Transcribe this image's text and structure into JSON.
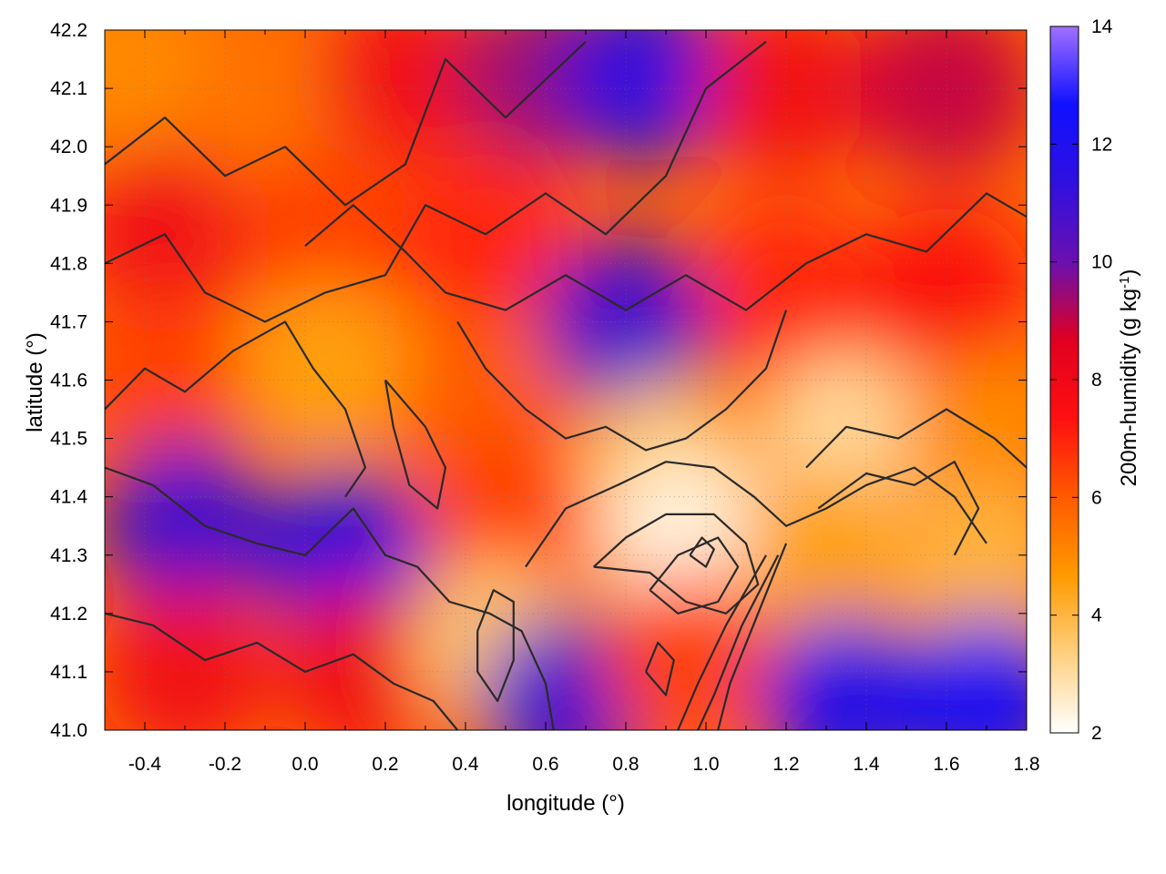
{
  "chart_data": {
    "type": "heatmap",
    "xlabel": "longitude (°)",
    "ylabel": "latitude (°)",
    "xlim": [
      -0.5,
      1.8
    ],
    "ylim": [
      41.0,
      42.2
    ],
    "x_ticks": [
      "-0.4",
      "-0.2",
      "0.0",
      "0.2",
      "0.4",
      "0.6",
      "0.8",
      "1.0",
      "1.2",
      "1.4",
      "1.6",
      "1.8"
    ],
    "x_tick_values": [
      -0.4,
      -0.2,
      0.0,
      0.2,
      0.4,
      0.6,
      0.8,
      1.0,
      1.2,
      1.4,
      1.6,
      1.8
    ],
    "y_ticks": [
      "41.0",
      "41.1",
      "41.2",
      "41.3",
      "41.4",
      "41.5",
      "41.6",
      "41.7",
      "41.8",
      "41.9",
      "42.0",
      "42.1",
      "42.2"
    ],
    "y_tick_values": [
      41.0,
      41.1,
      41.2,
      41.3,
      41.4,
      41.5,
      41.6,
      41.7,
      41.8,
      41.9,
      42.0,
      42.1,
      42.2
    ],
    "grid": true,
    "colorbar": {
      "label_main": "200m-humidity (g kg",
      "label_exp": "-1",
      "label_close": ")",
      "range": [
        2,
        14
      ],
      "ticks": [
        "2",
        "4",
        "6",
        "8",
        "10",
        "12",
        "14"
      ],
      "tick_values": [
        2,
        4,
        6,
        8,
        10,
        12,
        14
      ],
      "colors": [
        "#ffffff",
        "#ffd080",
        "#ff9a00",
        "#ff5a00",
        "#ff1010",
        "#e00020",
        "#6a10b0",
        "#3010e0",
        "#1010ff",
        "#a070ff"
      ]
    },
    "contour_color": "#2a2a2a",
    "field_samples": [
      {
        "lon": -0.45,
        "lat": 42.15,
        "value": 5.0
      },
      {
        "lon": -0.1,
        "lat": 42.05,
        "value": 5.5
      },
      {
        "lon": 0.25,
        "lat": 42.12,
        "value": 8.0
      },
      {
        "lon": 0.6,
        "lat": 42.12,
        "value": 9.5
      },
      {
        "lon": 0.85,
        "lat": 42.12,
        "value": 11.5
      },
      {
        "lon": 1.2,
        "lat": 42.1,
        "value": 8.0
      },
      {
        "lon": 1.6,
        "lat": 42.1,
        "value": 9.0
      },
      {
        "lon": -0.35,
        "lat": 41.85,
        "value": 8.0
      },
      {
        "lon": 0.05,
        "lat": 41.85,
        "value": 6.5
      },
      {
        "lon": 0.45,
        "lat": 41.85,
        "value": 7.0
      },
      {
        "lon": 0.8,
        "lat": 41.7,
        "value": 11.0
      },
      {
        "lon": 1.2,
        "lat": 41.75,
        "value": 7.0
      },
      {
        "lon": 1.6,
        "lat": 41.75,
        "value": 7.5
      },
      {
        "lon": -0.35,
        "lat": 41.6,
        "value": 6.5
      },
      {
        "lon": 0.05,
        "lat": 41.62,
        "value": 4.5
      },
      {
        "lon": 0.45,
        "lat": 41.55,
        "value": 6.0
      },
      {
        "lon": 0.9,
        "lat": 41.45,
        "value": 3.5
      },
      {
        "lon": 1.35,
        "lat": 41.5,
        "value": 3.0
      },
      {
        "lon": 1.7,
        "lat": 41.5,
        "value": 5.0
      },
      {
        "lon": -0.3,
        "lat": 41.35,
        "value": 11.0
      },
      {
        "lon": 0.1,
        "lat": 41.3,
        "value": 11.5
      },
      {
        "lon": 0.5,
        "lat": 41.35,
        "value": 6.5
      },
      {
        "lon": 0.95,
        "lat": 41.32,
        "value": 2.3
      },
      {
        "lon": 1.3,
        "lat": 41.3,
        "value": 4.5
      },
      {
        "lon": 1.7,
        "lat": 41.28,
        "value": 4.0
      },
      {
        "lon": -0.3,
        "lat": 41.1,
        "value": 8.0
      },
      {
        "lon": 0.15,
        "lat": 41.1,
        "value": 8.0
      },
      {
        "lon": 0.48,
        "lat": 41.15,
        "value": 3.5
      },
      {
        "lon": 0.65,
        "lat": 41.05,
        "value": 11.0
      },
      {
        "lon": 0.95,
        "lat": 41.12,
        "value": 6.5
      },
      {
        "lon": 1.35,
        "lat": 41.05,
        "value": 12.0
      },
      {
        "lon": 1.7,
        "lat": 41.05,
        "value": 12.5
      }
    ],
    "contours": [
      [
        [
          -0.5,
          41.97
        ],
        [
          -0.35,
          42.05
        ],
        [
          -0.2,
          41.95
        ],
        [
          -0.05,
          42.0
        ],
        [
          0.1,
          41.9
        ],
        [
          0.25,
          41.97
        ],
        [
          0.35,
          42.15
        ],
        [
          0.5,
          42.05
        ],
        [
          0.7,
          42.18
        ]
      ],
      [
        [
          -0.5,
          41.8
        ],
        [
          -0.35,
          41.85
        ],
        [
          -0.25,
          41.75
        ],
        [
          -0.1,
          41.7
        ],
        [
          0.05,
          41.75
        ],
        [
          0.2,
          41.78
        ],
        [
          0.3,
          41.9
        ],
        [
          0.45,
          41.85
        ],
        [
          0.6,
          41.92
        ],
        [
          0.75,
          41.85
        ],
        [
          0.9,
          41.95
        ],
        [
          1.0,
          42.1
        ],
        [
          1.15,
          42.18
        ]
      ],
      [
        [
          0.0,
          41.83
        ],
        [
          0.12,
          41.9
        ],
        [
          0.25,
          41.82
        ],
        [
          0.35,
          41.75
        ],
        [
          0.5,
          41.72
        ],
        [
          0.65,
          41.78
        ],
        [
          0.8,
          41.72
        ],
        [
          0.95,
          41.78
        ],
        [
          1.1,
          41.72
        ],
        [
          1.25,
          41.8
        ],
        [
          1.4,
          41.85
        ],
        [
          1.55,
          41.82
        ],
        [
          1.7,
          41.92
        ],
        [
          1.8,
          41.88
        ]
      ],
      [
        [
          -0.5,
          41.55
        ],
        [
          -0.4,
          41.62
        ],
        [
          -0.3,
          41.58
        ],
        [
          -0.18,
          41.65
        ],
        [
          -0.05,
          41.7
        ],
        [
          0.02,
          41.62
        ],
        [
          0.1,
          41.55
        ],
        [
          0.15,
          41.45
        ],
        [
          0.1,
          41.4
        ]
      ],
      [
        [
          0.2,
          41.6
        ],
        [
          0.3,
          41.52
        ],
        [
          0.35,
          41.45
        ],
        [
          0.33,
          41.38
        ],
        [
          0.26,
          41.42
        ],
        [
          0.22,
          41.52
        ],
        [
          0.2,
          41.6
        ]
      ],
      [
        [
          0.38,
          41.7
        ],
        [
          0.45,
          41.62
        ],
        [
          0.55,
          41.55
        ],
        [
          0.65,
          41.5
        ],
        [
          0.75,
          41.52
        ],
        [
          0.85,
          41.48
        ],
        [
          0.95,
          41.5
        ],
        [
          1.05,
          41.55
        ],
        [
          1.15,
          41.62
        ],
        [
          1.2,
          41.72
        ]
      ],
      [
        [
          0.55,
          41.28
        ],
        [
          0.65,
          41.38
        ],
        [
          0.78,
          41.42
        ],
        [
          0.9,
          41.46
        ],
        [
          1.02,
          41.45
        ],
        [
          1.12,
          41.4
        ],
        [
          1.2,
          41.35
        ],
        [
          1.3,
          41.38
        ],
        [
          1.4,
          41.42
        ],
        [
          1.52,
          41.45
        ],
        [
          1.62,
          41.4
        ],
        [
          1.7,
          41.32
        ]
      ],
      [
        [
          0.72,
          41.28
        ],
        [
          0.8,
          41.33
        ],
        [
          0.9,
          41.37
        ],
        [
          1.02,
          41.37
        ],
        [
          1.1,
          41.32
        ],
        [
          1.13,
          41.25
        ],
        [
          1.05,
          41.2
        ],
        [
          0.95,
          41.22
        ],
        [
          0.86,
          41.27
        ],
        [
          0.72,
          41.28
        ]
      ],
      [
        [
          0.86,
          41.24
        ],
        [
          0.93,
          41.3
        ],
        [
          1.03,
          41.33
        ],
        [
          1.08,
          41.28
        ],
        [
          1.03,
          41.22
        ],
        [
          0.93,
          41.2
        ],
        [
          0.86,
          41.24
        ]
      ],
      [
        [
          0.96,
          41.3
        ],
        [
          0.99,
          41.33
        ],
        [
          1.02,
          41.31
        ],
        [
          1.0,
          41.28
        ],
        [
          0.96,
          41.3
        ]
      ],
      [
        [
          1.15,
          41.3
        ],
        [
          1.05,
          41.18
        ],
        [
          0.98,
          41.08
        ],
        [
          0.93,
          41.0
        ]
      ],
      [
        [
          1.18,
          41.3
        ],
        [
          1.09,
          41.18
        ],
        [
          1.02,
          41.06
        ],
        [
          0.98,
          41.0
        ]
      ],
      [
        [
          1.2,
          41.32
        ],
        [
          1.13,
          41.2
        ],
        [
          1.06,
          41.08
        ],
        [
          1.03,
          41.0
        ]
      ],
      [
        [
          -0.5,
          41.45
        ],
        [
          -0.38,
          41.42
        ],
        [
          -0.25,
          41.35
        ],
        [
          -0.12,
          41.32
        ],
        [
          0.0,
          41.3
        ],
        [
          0.12,
          41.38
        ],
        [
          0.2,
          41.3
        ],
        [
          0.28,
          41.28
        ],
        [
          0.36,
          41.22
        ],
        [
          0.46,
          41.2
        ],
        [
          0.54,
          41.17
        ],
        [
          0.6,
          41.08
        ],
        [
          0.62,
          41.0
        ]
      ],
      [
        [
          -0.5,
          41.2
        ],
        [
          -0.38,
          41.18
        ],
        [
          -0.25,
          41.12
        ],
        [
          -0.12,
          41.15
        ],
        [
          0.0,
          41.1
        ],
        [
          0.12,
          41.13
        ],
        [
          0.22,
          41.08
        ],
        [
          0.32,
          41.05
        ],
        [
          0.38,
          41.0
        ]
      ],
      [
        [
          0.43,
          41.17
        ],
        [
          0.47,
          41.24
        ],
        [
          0.52,
          41.22
        ],
        [
          0.52,
          41.12
        ],
        [
          0.48,
          41.05
        ],
        [
          0.43,
          41.1
        ],
        [
          0.43,
          41.17
        ]
      ],
      [
        [
          1.25,
          41.45
        ],
        [
          1.35,
          41.52
        ],
        [
          1.48,
          41.5
        ],
        [
          1.6,
          41.55
        ],
        [
          1.72,
          41.5
        ],
        [
          1.8,
          41.45
        ]
      ],
      [
        [
          1.28,
          41.38
        ],
        [
          1.4,
          41.44
        ],
        [
          1.52,
          41.42
        ],
        [
          1.62,
          41.46
        ],
        [
          1.68,
          41.38
        ],
        [
          1.62,
          41.3
        ]
      ],
      [
        [
          0.85,
          41.1
        ],
        [
          0.88,
          41.15
        ],
        [
          0.92,
          41.12
        ],
        [
          0.9,
          41.06
        ],
        [
          0.85,
          41.1
        ]
      ]
    ]
  }
}
